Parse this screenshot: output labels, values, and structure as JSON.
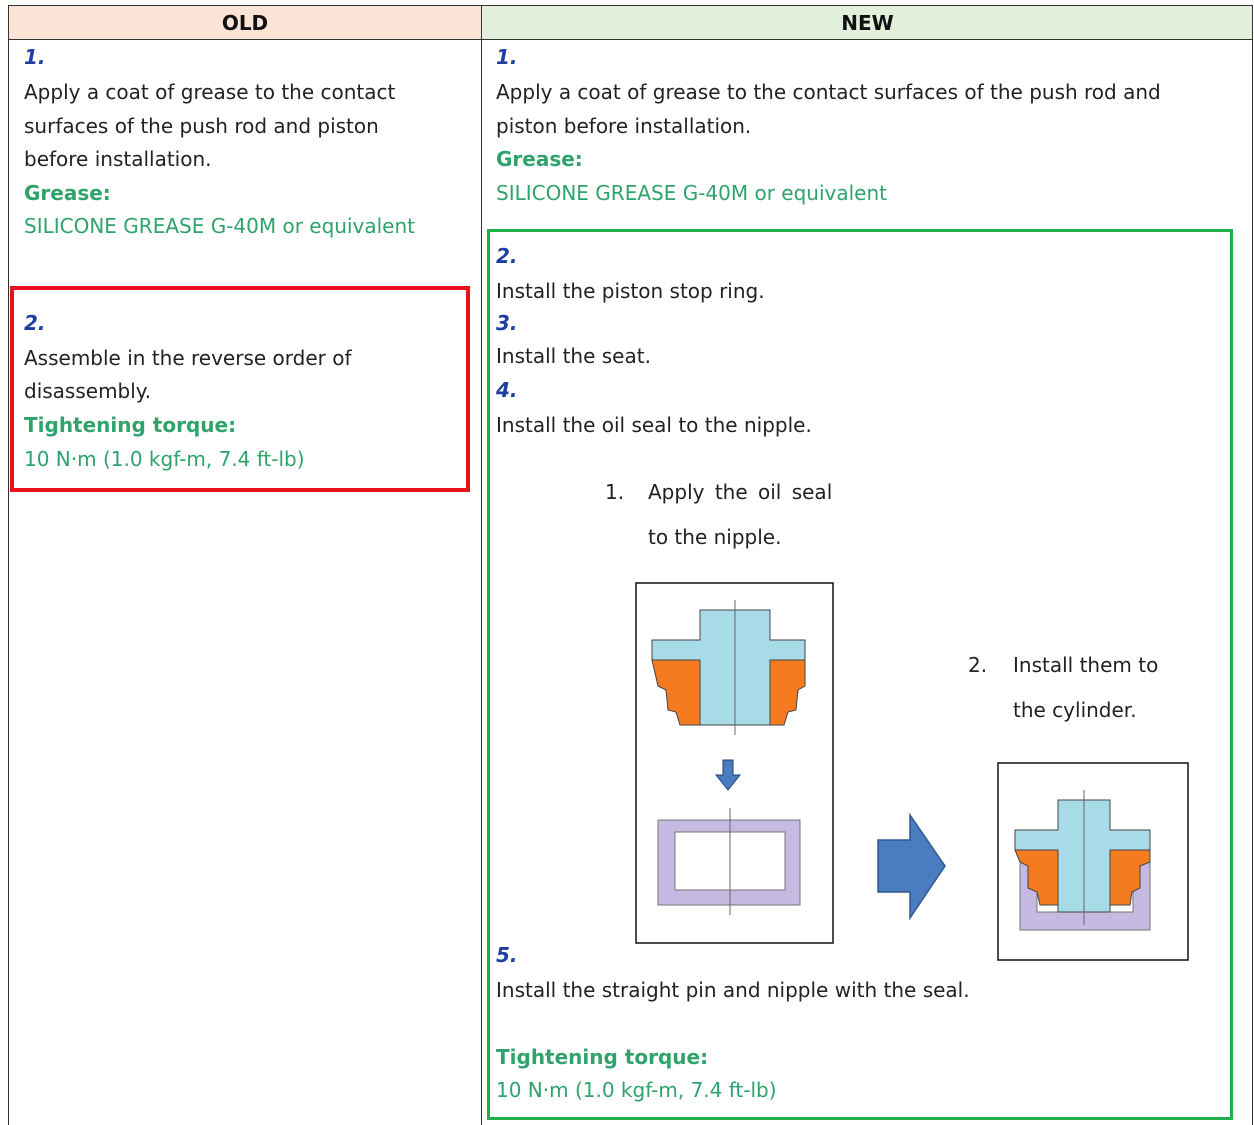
{
  "header": {
    "old": "OLD",
    "new": "NEW"
  },
  "old": {
    "steps": [
      {
        "number": "1.",
        "lines": [
          "Apply a coat of grease to the contact",
          "surfaces of the push rod and piston",
          "before installation."
        ],
        "spec_label": "Grease:",
        "spec_value": "SILICONE GREASE G-40M or equivalent"
      },
      {
        "number": "2.",
        "lines": [
          "Assemble in the reverse order of",
          "disassembly."
        ],
        "spec_label": "Tightening torque:",
        "spec_value": "10 N·m (1.0 kgf-m, 7.4 ft-lb)"
      }
    ]
  },
  "new": {
    "steps": [
      {
        "number": "1.",
        "lines": [
          "Apply a coat of grease to the contact surfaces of the push rod and",
          "piston before installation."
        ],
        "spec_label": "Grease:",
        "spec_value": "SILICONE GREASE G-40M or equivalent"
      },
      {
        "number": "2.",
        "lines": [
          "Install the piston stop ring."
        ]
      },
      {
        "number": "3.",
        "lines": [
          "Install the seat."
        ]
      },
      {
        "number": "4.",
        "lines": [
          "Install the oil seal to the nipple."
        ]
      },
      {
        "number": "5.",
        "lines": [
          "Install the straight pin and nipple with the seal."
        ],
        "spec_label": "Tightening torque:",
        "spec_value": "10 N·m (1.0 kgf-m, 7.4 ft-lb)"
      }
    ],
    "figure": {
      "captions": [
        {
          "number": "1.",
          "lines": [
            "Apply the oil seal",
            "to the nipple."
          ]
        },
        {
          "number": "2.",
          "lines": [
            "Install them to",
            "the cylinder."
          ]
        }
      ]
    }
  }
}
